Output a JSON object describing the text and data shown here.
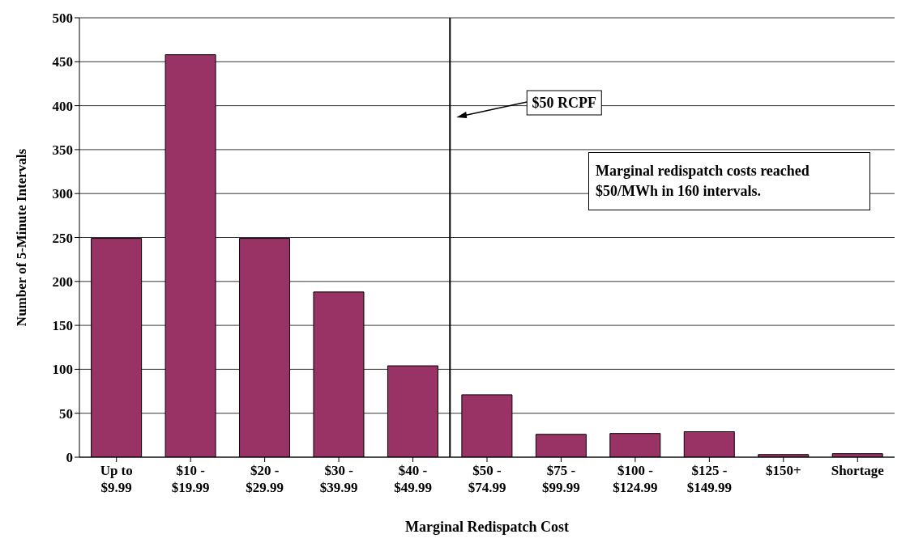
{
  "chart_data": {
    "type": "bar",
    "xlabel": "Marginal Redispatch Cost",
    "ylabel": "Number of 5-Minute Intervals",
    "categories": [
      "Up to\n$9.99",
      "$10 -\n$19.99",
      "$20 -\n$29.99",
      "$30 -\n$39.99",
      "$40 -\n$49.99",
      "$50 -\n$74.99",
      "$75 -\n$99.99",
      "$100 -\n$124.99",
      "$125 -\n$149.99",
      "$150+",
      "Shortage"
    ],
    "values": [
      249,
      458,
      249,
      188,
      104,
      71,
      26,
      27,
      29,
      3,
      4
    ],
    "color": "#993366",
    "ylim": [
      0,
      500
    ],
    "yticks": [
      0,
      50,
      100,
      150,
      200,
      250,
      300,
      350,
      400,
      450,
      500
    ],
    "grid": "y",
    "ref_lines": [
      {
        "axis": "x",
        "value": "$50 -\n$74.99",
        "label": "$50 RCPF",
        "color": "#000000"
      }
    ],
    "annotations": [
      "Marginal redispatch costs reached $50/MWh in 160 intervals."
    ]
  }
}
